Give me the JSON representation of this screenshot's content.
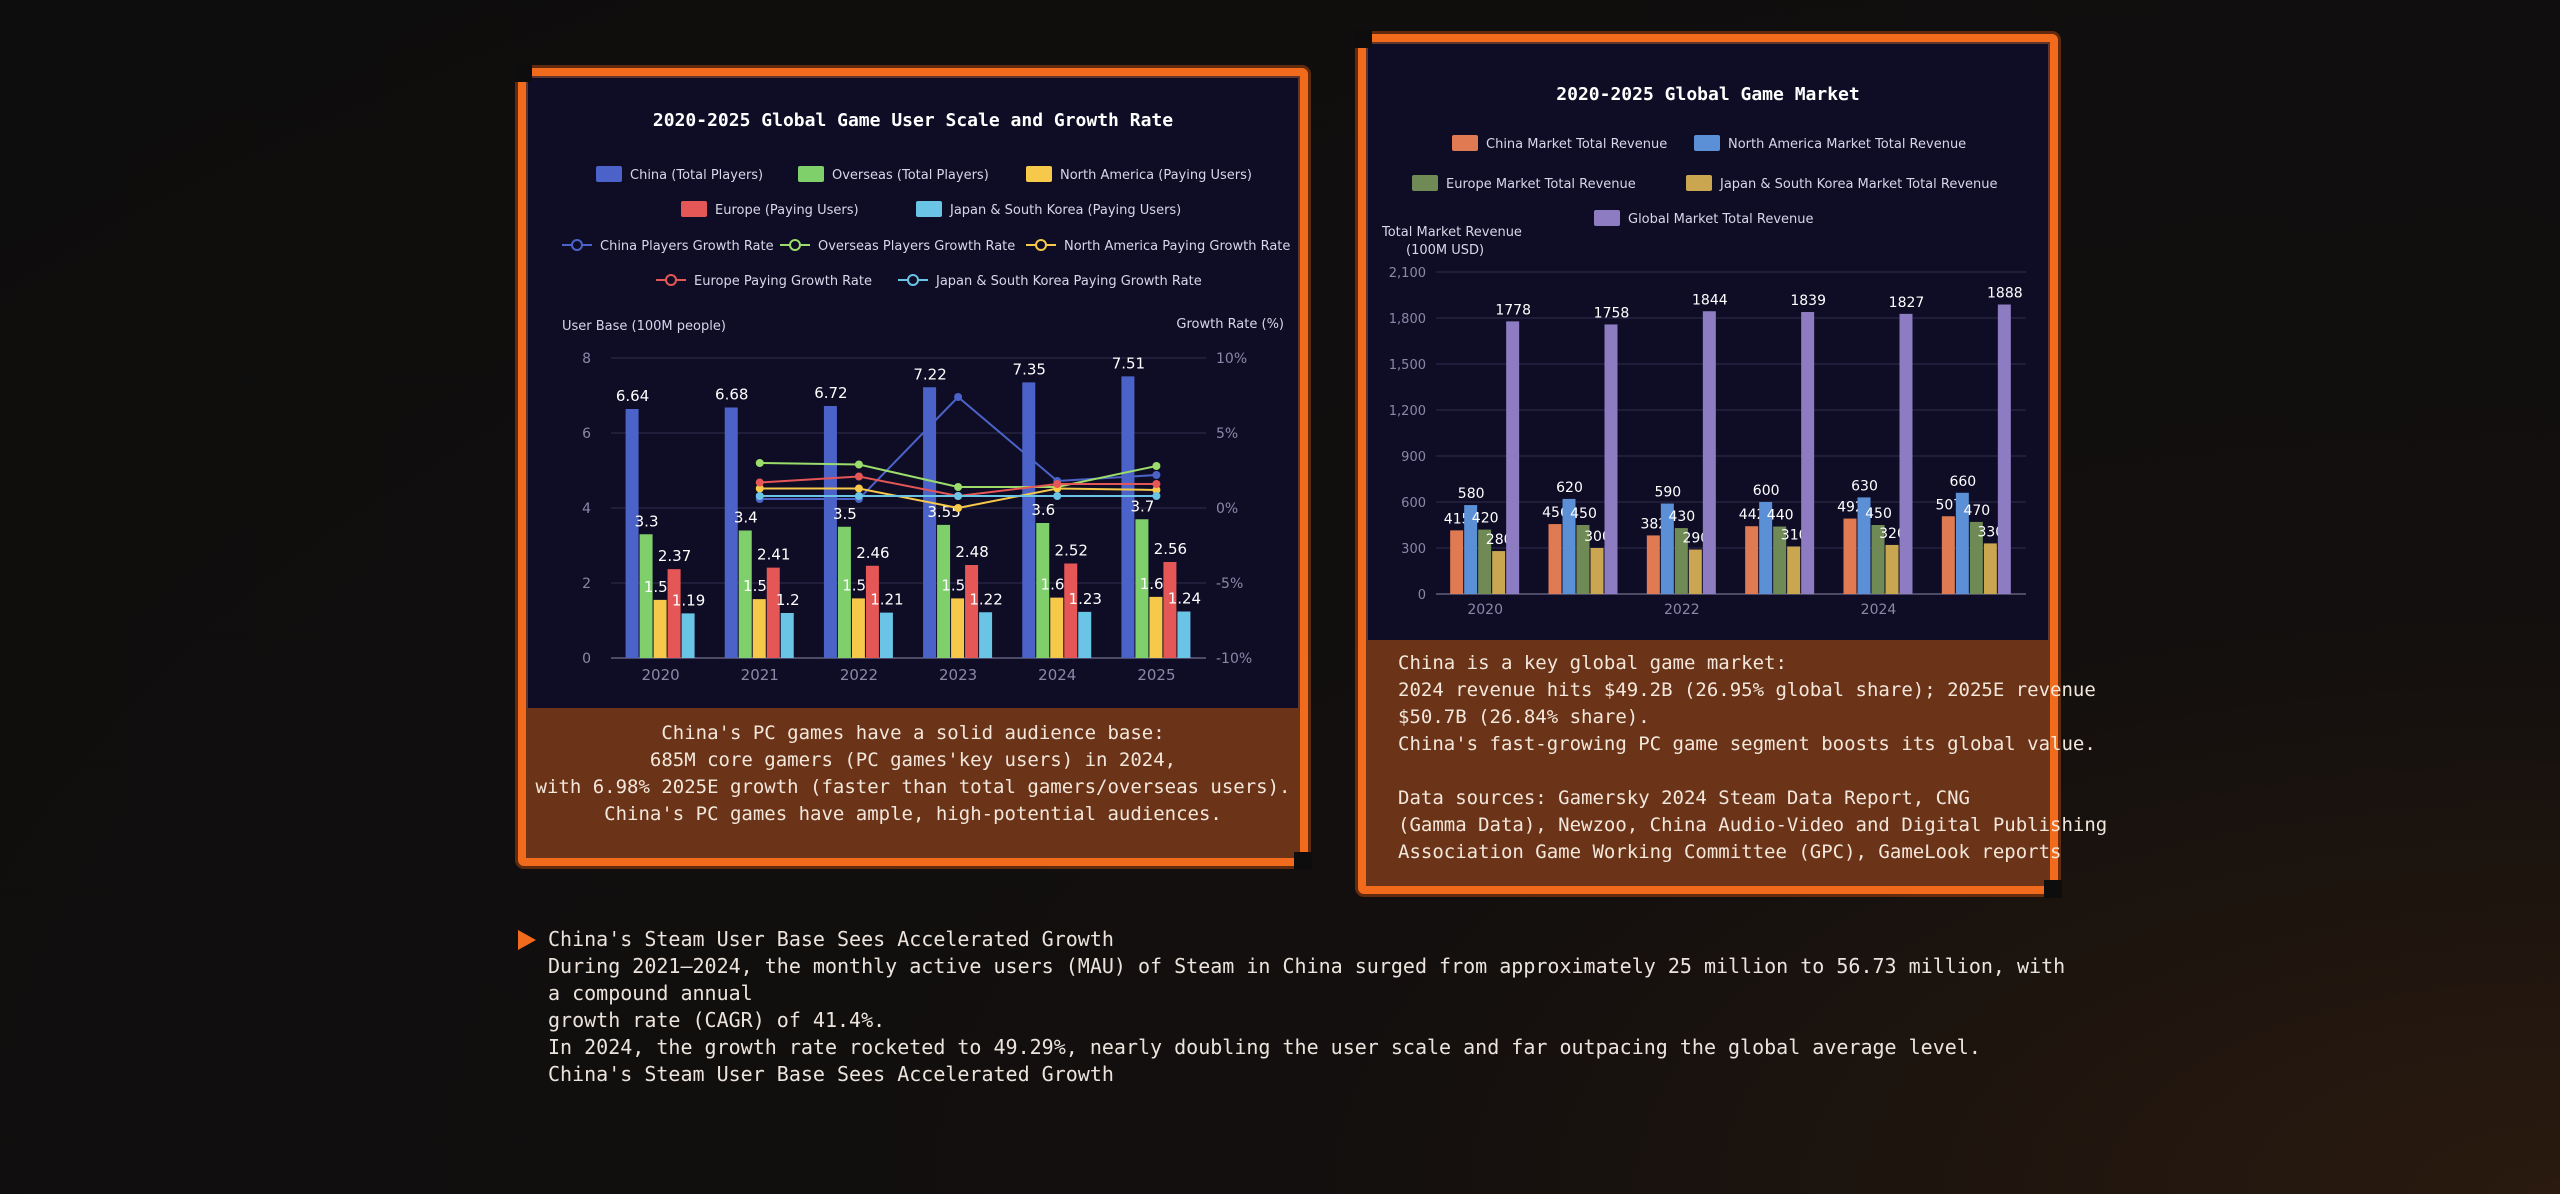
{
  "colors": {
    "accent": "#f26b1d",
    "panel_bg": "#0f0d26",
    "note_bg": "#6b3418"
  },
  "left_note": {
    "lines": [
      "China's PC games have a solid audience base:",
      "685M core gamers (PC games'key users) in 2024,",
      "with 6.98% 2025E growth (faster than total gamers/overseas users).",
      "China's PC games have ample, high-potential audiences."
    ]
  },
  "right_note": {
    "lines": [
      "China is a key global game market:",
      "2024 revenue hits $49.2B (26.95% global share); 2025E revenue",
      "$50.7B (26.84% share).",
      "China's fast-growing PC game segment boosts its global value."
    ],
    "sources": [
      "Data sources: Gamersky 2024 Steam Data Report, CNG",
      "(Gamma Data), Newzoo, China Audio-Video and Digital Publishing",
      "Association Game Working Committee (GPC), GameLook reports"
    ]
  },
  "bottom": {
    "heading": "China's Steam User Base Sees Accelerated Growth",
    "paragraph1": "During 2021—2024, the monthly active users (MAU) of Steam in China surged from approximately 25 million to 56.73 million, with a compound annual",
    "paragraph1b": "growth rate (CAGR) of 41.4%.",
    "paragraph2": "In 2024, the growth rate rocketed to 49.29%, nearly doubling the user scale and far outpacing the global average level.",
    "footer": "China's Steam User Base Sees Accelerated Growth"
  },
  "chart_data": [
    {
      "type": "bar",
      "title": "2020-2025 Global Game User Scale and Growth Rate",
      "ylabel": "User Base (100M people)",
      "y2label": "Growth Rate (%)",
      "ylim": [
        0,
        8
      ],
      "yticks": [
        0,
        2,
        4,
        6,
        8
      ],
      "y2lim": [
        -10,
        10
      ],
      "y2ticks": [
        "10%",
        "5%",
        "0%",
        "-5%",
        "-10%"
      ],
      "categories": [
        "2020",
        "2021",
        "2022",
        "2023",
        "2024",
        "2025"
      ],
      "series": [
        {
          "name": "China (Total Players)",
          "color": "#4b63c9",
          "values": [
            6.64,
            6.68,
            6.72,
            7.22,
            7.35,
            7.51
          ]
        },
        {
          "name": "Overseas (Total Players)",
          "color": "#7fcf6b",
          "values": [
            3.3,
            3.4,
            3.5,
            3.55,
            3.6,
            3.7
          ]
        },
        {
          "name": "North America (Paying Users)",
          "color": "#f6c94a",
          "values": [
            1.55,
            1.57,
            1.59,
            1.59,
            1.61,
            1.63
          ]
        },
        {
          "name": "Europe (Paying Users)",
          "color": "#e55656",
          "values": [
            2.37,
            2.41,
            2.46,
            2.48,
            2.52,
            2.56
          ]
        },
        {
          "name": "Japan & South Korea (Paying Users)",
          "color": "#6ac4e6",
          "values": [
            1.19,
            1.2,
            1.21,
            1.22,
            1.23,
            1.24
          ]
        }
      ],
      "growth_series": [
        {
          "name": "China Players Growth Rate",
          "color": "#4b63c9",
          "values": [
            0.6,
            0.6,
            7.4,
            1.8,
            2.2
          ]
        },
        {
          "name": "Overseas Players Growth Rate",
          "color": "#9bdc6b",
          "values": [
            3.0,
            2.9,
            1.4,
            1.4,
            2.8
          ]
        },
        {
          "name": "North America Paying Growth Rate",
          "color": "#f6c94a",
          "values": [
            1.3,
            1.3,
            0.0,
            1.3,
            1.2
          ]
        },
        {
          "name": "Europe Paying Growth Rate",
          "color": "#e55656",
          "values": [
            1.7,
            2.1,
            0.8,
            1.6,
            1.6
          ]
        },
        {
          "name": "Japan & South Korea Paying Growth Rate",
          "color": "#6ac4e6",
          "values": [
            0.8,
            0.8,
            0.8,
            0.8,
            0.8
          ]
        }
      ],
      "growth_categories": [
        "2021",
        "2022",
        "2023",
        "2024",
        "2025"
      ]
    },
    {
      "type": "bar",
      "title": "2020-2025 Global Game Market",
      "ylabel": "Total Market Revenue",
      "ylabel2": "(100M USD)",
      "ylim": [
        0,
        2100
      ],
      "yticks": [
        0,
        300,
        600,
        900,
        1200,
        1500,
        1800,
        2100
      ],
      "yticklabels": [
        "0",
        "300",
        "600",
        "900",
        "1,200",
        "1,500",
        "1,800",
        "2,100"
      ],
      "categories": [
        "2020",
        "2021",
        "2022",
        "2023",
        "2024",
        "2025"
      ],
      "xticklabels": [
        "2020",
        "",
        "2022",
        "",
        "2024",
        ""
      ],
      "series": [
        {
          "name": "China Market Total Revenue",
          "color": "#e07a52",
          "values": [
            415,
            456,
            382,
            442,
            492,
            507
          ]
        },
        {
          "name": "North America Market Total Revenue",
          "color": "#5b8fd6",
          "values": [
            580,
            620,
            590,
            600,
            630,
            660
          ]
        },
        {
          "name": "Europe Market Total Revenue",
          "color": "#6f8a55",
          "values": [
            420,
            450,
            430,
            440,
            450,
            470
          ]
        },
        {
          "name": "Japan & South Korea Market Total Revenue",
          "color": "#c9a64f",
          "values": [
            280,
            300,
            290,
            310,
            320,
            330
          ]
        },
        {
          "name": "Global Market Total Revenue",
          "color": "#8e7cc3",
          "values": [
            1778,
            1758,
            1844,
            1839,
            1827,
            1888
          ]
        }
      ]
    }
  ]
}
